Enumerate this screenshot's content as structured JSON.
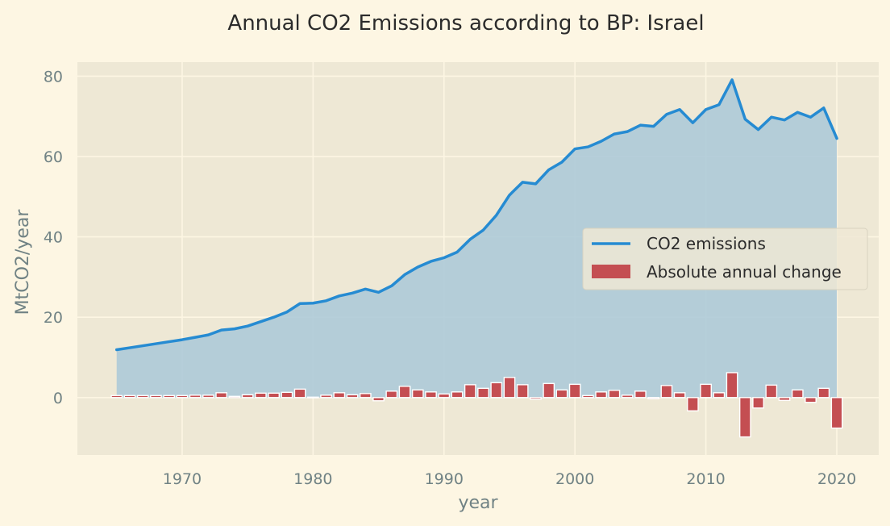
{
  "chart_data": {
    "type": "line",
    "title": "Annual CO2 Emissions according to BP: Israel",
    "xlabel": "year",
    "ylabel": "MtCO2/year",
    "xlim": [
      1962,
      2023.2
    ],
    "ylim": [
      -14.3,
      83.5
    ],
    "xticks": [
      1970,
      1980,
      1990,
      2000,
      2010,
      2020
    ],
    "yticks": [
      0,
      20,
      40,
      60,
      80
    ],
    "grid": true,
    "legend_position": "center-right",
    "colors": {
      "background": "#fdf6e3",
      "plot_background": "#eee8d5",
      "grid": "#fdf6e3",
      "line": "#268bd2",
      "fill": "#a9c8d8",
      "bar": "#c44e52",
      "bar_edge": "#ffffff"
    },
    "x": [
      1965,
      1966,
      1967,
      1968,
      1969,
      1970,
      1971,
      1972,
      1973,
      1974,
      1975,
      1976,
      1977,
      1978,
      1979,
      1980,
      1981,
      1982,
      1983,
      1984,
      1985,
      1986,
      1987,
      1988,
      1989,
      1990,
      1991,
      1992,
      1993,
      1994,
      1995,
      1996,
      1997,
      1998,
      1999,
      2000,
      2001,
      2002,
      2003,
      2004,
      2005,
      2006,
      2007,
      2008,
      2009,
      2010,
      2011,
      2012,
      2013,
      2014,
      2015,
      2016,
      2017,
      2018,
      2019,
      2020
    ],
    "series": [
      {
        "name": "CO2 emissions",
        "kind": "line",
        "values": [
          11.9,
          12.4,
          12.9,
          13.4,
          13.9,
          14.4,
          15.0,
          15.6,
          16.8,
          17.1,
          17.8,
          18.9,
          20.0,
          21.3,
          23.4,
          23.5,
          24.1,
          25.3,
          26.0,
          27.0,
          26.2,
          27.8,
          30.6,
          32.5,
          33.9,
          34.8,
          36.2,
          39.4,
          41.7,
          45.4,
          50.4,
          53.6,
          53.2,
          56.7,
          58.6,
          61.9,
          62.4,
          63.8,
          65.6,
          66.2,
          67.8,
          67.5,
          70.5,
          71.7,
          68.4,
          71.7,
          72.9,
          79.1,
          69.3,
          66.7,
          69.8,
          69.1,
          71.0,
          69.8,
          72.1,
          64.5
        ]
      },
      {
        "name": "Absolute annual change",
        "kind": "bar",
        "values": [
          0.5,
          0.5,
          0.5,
          0.5,
          0.5,
          0.5,
          0.6,
          0.6,
          1.2,
          0.3,
          0.7,
          1.1,
          1.1,
          1.3,
          2.1,
          0.1,
          0.6,
          1.2,
          0.7,
          1.0,
          -0.8,
          1.6,
          2.8,
          1.9,
          1.4,
          0.9,
          1.4,
          3.2,
          2.3,
          3.7,
          5.0,
          3.2,
          -0.4,
          3.5,
          1.9,
          3.3,
          0.5,
          1.4,
          1.8,
          0.6,
          1.6,
          -0.3,
          3.0,
          1.2,
          -3.3,
          3.3,
          1.2,
          6.2,
          -9.8,
          -2.6,
          3.1,
          -0.7,
          1.9,
          -1.2,
          2.3,
          -7.6
        ]
      }
    ]
  }
}
